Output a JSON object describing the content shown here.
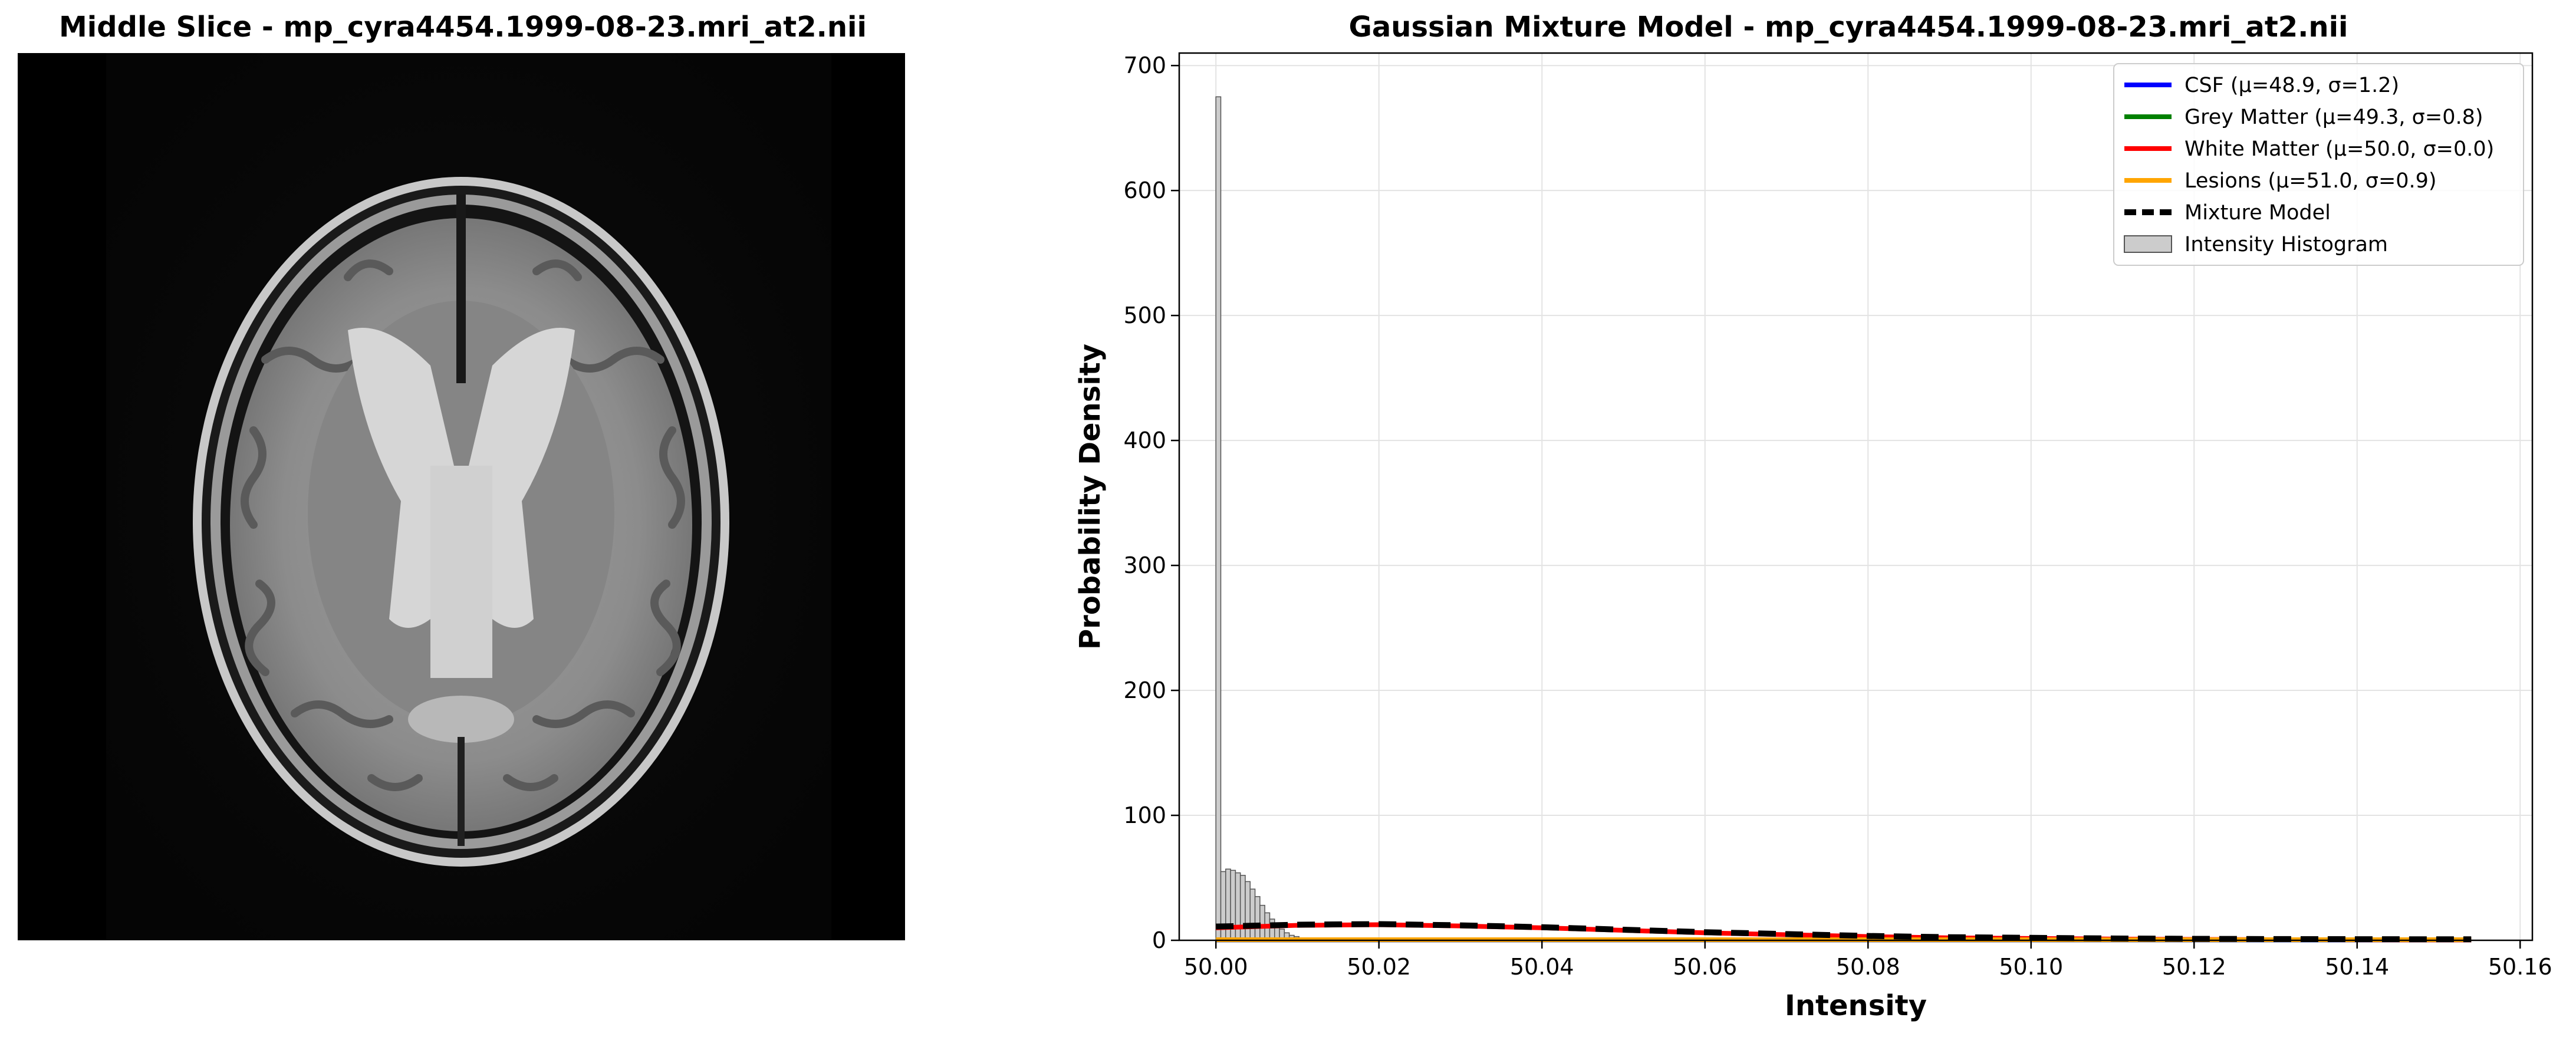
{
  "left_panel": {
    "title": "Middle Slice - mp_cyra4454.1999-08-23.mri_at2.nii"
  },
  "chart_data": {
    "type": "line",
    "title": "Gaussian Mixture Model - mp_cyra4454.1999-08-23.mri_at2.nii",
    "xlabel": "Intensity",
    "ylabel": "Probability Density",
    "xlim": [
      49.9955,
      50.1615
    ],
    "ylim": [
      0,
      710
    ],
    "xticks": [
      50.0,
      50.02,
      50.04,
      50.06,
      50.08,
      50.1,
      50.12,
      50.14,
      50.16
    ],
    "xtick_labels": [
      "50.00",
      "50.02",
      "50.04",
      "50.06",
      "50.08",
      "50.10",
      "50.12",
      "50.14",
      "50.16"
    ],
    "yticks": [
      0,
      100,
      200,
      300,
      400,
      500,
      600,
      700
    ],
    "ytick_labels": [
      "0",
      "100",
      "200",
      "300",
      "400",
      "500",
      "600",
      "700"
    ],
    "grid": true,
    "legend_position": "top-right",
    "histogram": {
      "name": "Intensity Histogram",
      "color": "#cccccc",
      "edge_color": "#555555",
      "bin_width": 0.0006,
      "bins_x": [
        50.0,
        50.0006,
        50.0012,
        50.0018,
        50.0024,
        50.003,
        50.0036,
        50.0042,
        50.0048,
        50.0054,
        50.006,
        50.0066,
        50.0072,
        50.0078,
        50.0084,
        50.009,
        50.0096,
        50.0102,
        50.0108,
        50.0114,
        50.012
      ],
      "values": [
        675,
        55,
        57,
        56,
        54,
        52,
        47,
        41,
        35,
        28,
        22,
        17,
        12,
        9,
        6,
        4,
        3,
        2,
        1.5,
        1,
        0.5
      ]
    },
    "series": [
      {
        "name": "CSF (μ=48.9, σ=1.2)",
        "color": "#0000ff",
        "dash": "solid",
        "x": [
          50.0,
          50.154
        ],
        "y": [
          0.3,
          0.3
        ]
      },
      {
        "name": "Grey Matter (μ=49.3, σ=0.8)",
        "color": "#008000",
        "dash": "solid",
        "x": [
          50.0,
          50.154
        ],
        "y": [
          0.4,
          0.4
        ]
      },
      {
        "name": "White Matter (μ=50.0, σ=0.0)",
        "color": "#ff0000",
        "dash": "solid",
        "x": [
          50.0,
          50.01,
          50.02,
          50.03,
          50.04,
          50.05,
          50.06,
          50.07,
          50.08,
          50.09,
          50.1,
          50.11,
          50.12,
          50.13,
          50.14,
          50.154
        ],
        "y": [
          10,
          12,
          12.5,
          11.5,
          10,
          8,
          6,
          4.5,
          3,
          2,
          1.5,
          1,
          0.7,
          0.5,
          0.4,
          0.3
        ]
      },
      {
        "name": "Lesions (μ=51.0, σ=0.9)",
        "color": "#ffa500",
        "dash": "solid",
        "x": [
          50.0,
          50.154
        ],
        "y": [
          0.5,
          0.5
        ]
      },
      {
        "name": "Mixture Model",
        "color": "#000000",
        "dash": "dashed",
        "x": [
          50.0,
          50.01,
          50.02,
          50.03,
          50.04,
          50.05,
          50.06,
          50.07,
          50.08,
          50.09,
          50.1,
          50.11,
          50.12,
          50.13,
          50.14,
          50.154
        ],
        "y": [
          11,
          12.5,
          13,
          12,
          10.5,
          8.5,
          6.5,
          5,
          3.5,
          2.5,
          2,
          1.5,
          1.2,
          1,
          0.9,
          0.8
        ]
      }
    ]
  }
}
